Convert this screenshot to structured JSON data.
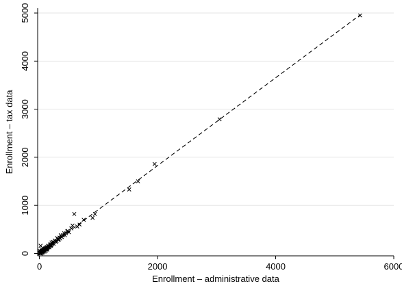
{
  "chart_data": {
    "type": "scatter",
    "title": "",
    "xlabel": "Enrollment – administrative data",
    "ylabel": "Enrollment – tax data",
    "xlim": [
      -30,
      6000
    ],
    "ylim": [
      -50,
      5100
    ],
    "xticks": [
      0,
      2000,
      4000,
      6000
    ],
    "yticks": [
      0,
      1000,
      2000,
      3000,
      4000,
      5000
    ],
    "xtick_labels": [
      "0",
      "2000",
      "4000",
      "6000"
    ],
    "ytick_labels": [
      "0",
      "1000",
      "2000",
      "3000",
      "4000",
      "5000"
    ],
    "grid": "horizontal",
    "legend": "none",
    "marker": "x",
    "fit_line": {
      "style": "dashed",
      "x": [
        0,
        5430
      ],
      "y": [
        0,
        4960
      ]
    },
    "series": [
      {
        "points": [
          [
            5430,
            4950
          ],
          [
            3050,
            2790
          ],
          [
            1950,
            1860
          ],
          [
            1670,
            1500
          ],
          [
            1520,
            1330
          ],
          [
            940,
            820
          ],
          [
            900,
            740
          ],
          [
            750,
            700
          ],
          [
            680,
            600
          ],
          [
            640,
            560
          ],
          [
            590,
            820
          ],
          [
            560,
            580
          ],
          [
            540,
            520
          ],
          [
            500,
            440
          ],
          [
            470,
            460
          ],
          [
            450,
            420
          ],
          [
            420,
            420
          ],
          [
            400,
            380
          ],
          [
            370,
            350
          ],
          [
            350,
            310
          ],
          [
            330,
            290
          ],
          [
            310,
            300
          ],
          [
            290,
            260
          ],
          [
            270,
            250
          ],
          [
            250,
            230
          ],
          [
            240,
            200
          ],
          [
            220,
            210
          ],
          [
            200,
            170
          ],
          [
            190,
            180
          ],
          [
            180,
            150
          ],
          [
            160,
            150
          ],
          [
            150,
            130
          ],
          [
            140,
            120
          ],
          [
            130,
            110
          ],
          [
            120,
            100
          ],
          [
            110,
            120
          ],
          [
            100,
            80
          ],
          [
            90,
            90
          ],
          [
            80,
            60
          ],
          [
            70,
            70
          ],
          [
            60,
            50
          ],
          [
            50,
            40
          ],
          [
            40,
            30
          ],
          [
            30,
            40
          ],
          [
            20,
            20
          ],
          [
            10,
            10
          ],
          [
            5,
            5
          ],
          [
            0,
            20
          ],
          [
            15,
            0
          ],
          [
            25,
            10
          ],
          [
            35,
            55
          ],
          [
            45,
            25
          ],
          [
            55,
            65
          ],
          [
            65,
            45
          ],
          [
            75,
            85
          ],
          [
            85,
            55
          ],
          [
            95,
            105
          ],
          [
            105,
            95
          ],
          [
            115,
            85
          ],
          [
            125,
            135
          ],
          [
            135,
            100
          ],
          [
            145,
            160
          ],
          [
            155,
            140
          ],
          [
            165,
            125
          ],
          [
            175,
            170
          ],
          [
            185,
            200
          ],
          [
            195,
            160
          ],
          [
            205,
            230
          ],
          [
            215,
            190
          ],
          [
            230,
            240
          ],
          [
            260,
            270
          ],
          [
            280,
            240
          ],
          [
            300,
            320
          ],
          [
            320,
            280
          ],
          [
            340,
            330
          ],
          [
            360,
            380
          ],
          [
            380,
            340
          ],
          [
            430,
            380
          ],
          [
            480,
            470
          ],
          [
            20,
            160
          ],
          [
            40,
            90
          ],
          [
            60,
            110
          ],
          [
            0,
            60
          ],
          [
            10,
            40
          ],
          [
            30,
            0
          ],
          [
            50,
            10
          ],
          [
            70,
            30
          ],
          [
            90,
            40
          ],
          [
            110,
            60
          ],
          [
            130,
            80
          ]
        ]
      }
    ]
  }
}
